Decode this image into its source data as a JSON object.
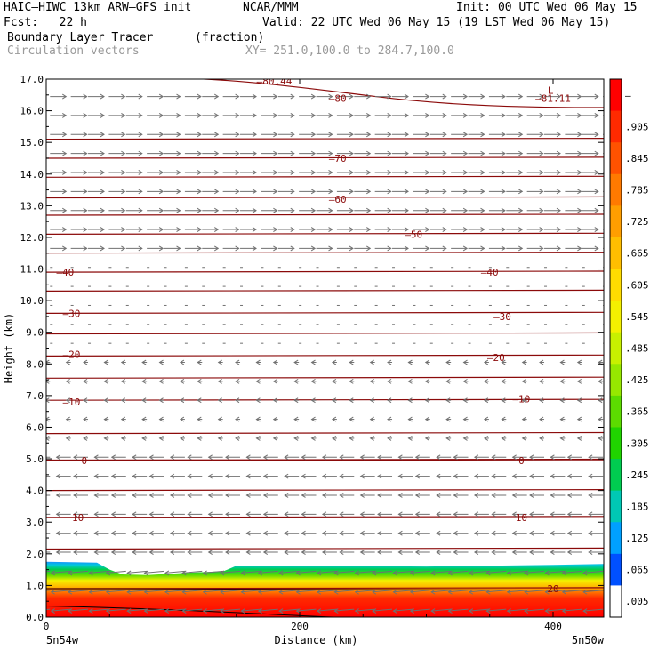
{
  "header": {
    "model": "HAIC–HIWC 13km ARW–GFS init",
    "org": "NCAR/MMM",
    "init": "Init: 00 UTC Wed 06 May 15",
    "fcst": "Fcst:   22 h",
    "valid": "Valid: 22 UTC Wed 06 May 15 (19 LST Wed 06 May 15)",
    "field": "Boundary Layer Tracer",
    "units": "(fraction)",
    "vectors": "Circulation vectors",
    "xy": "XY= 251.0,100.0 to 284.7,100.0"
  },
  "chart_data": {
    "type": "heatmap",
    "xlabel": "Distance (km)",
    "ylabel": "Height (km)",
    "xlim": [
      0,
      440
    ],
    "ylim": [
      0,
      17
    ],
    "xticks": [
      0,
      200,
      400
    ],
    "yticks": [
      "0.0",
      "1.0",
      "2.0",
      "3.0",
      "4.0",
      "5.0",
      "6.0",
      "7.0",
      "8.0",
      "9.0",
      "10.0",
      "11.0",
      "12.0",
      "13.0",
      "14.0",
      "15.0",
      "16.0",
      "17.0"
    ],
    "x_endpoints": {
      "left": "5n54w",
      "right": "5n50w"
    },
    "colorbar": {
      "labels": [
        "–",
        ".905",
        ".845",
        ".785",
        ".725",
        ".665",
        ".605",
        ".545",
        ".485",
        ".425",
        ".365",
        ".305",
        ".245",
        ".185",
        ".125",
        ".065",
        ".005"
      ],
      "colors": [
        "#ff0000",
        "#ff2a00",
        "#ff5200",
        "#ff7a00",
        "#ff9e00",
        "#ffbe00",
        "#ffdc00",
        "#f4f000",
        "#c8f000",
        "#96e800",
        "#5cdc00",
        "#20d400",
        "#00cc50",
        "#00c8b4",
        "#00a0ff",
        "#0050ff",
        "#ffffff"
      ]
    },
    "tracer_top_km": [
      [
        0,
        1.75
      ],
      [
        40,
        1.72
      ],
      [
        50,
        1.5
      ],
      [
        60,
        1.35
      ],
      [
        80,
        1.33
      ],
      [
        110,
        1.4
      ],
      [
        140,
        1.45
      ],
      [
        150,
        1.62
      ],
      [
        200,
        1.62
      ],
      [
        300,
        1.6
      ],
      [
        400,
        1.65
      ],
      [
        440,
        1.68
      ]
    ],
    "temperature_contours": [
      {
        "label": "20",
        "x": 400,
        "y": 0.9
      },
      {
        "label": "10",
        "x": 25,
        "y": 3.15
      },
      {
        "label": "10",
        "x": 375,
        "y": 3.15
      },
      {
        "label": "0",
        "x": 30,
        "y": 4.95
      },
      {
        "label": "0",
        "x": 375,
        "y": 4.95
      },
      {
        "label": "–10",
        "x": 20,
        "y": 6.8
      },
      {
        "label": "–10",
        "x": 375,
        "y": 6.9
      },
      {
        "label": "–20",
        "x": 20,
        "y": 8.3
      },
      {
        "label": "–20",
        "x": 355,
        "y": 8.2
      },
      {
        "label": "–30",
        "x": 20,
        "y": 9.6
      },
      {
        "label": "–30",
        "x": 360,
        "y": 9.5
      },
      {
        "label": "–40",
        "x": 15,
        "y": 10.9
      },
      {
        "label": "–40",
        "x": 350,
        "y": 10.9
      },
      {
        "label": "–50",
        "x": 290,
        "y": 12.1
      },
      {
        "label": "–60",
        "x": 230,
        "y": 13.2
      },
      {
        "label": "–70",
        "x": 230,
        "y": 14.5
      },
      {
        "label": "–80",
        "x": 230,
        "y": 16.4
      },
      {
        "label": "–81.11",
        "x": 400,
        "y": 16.4
      },
      {
        "label": "L",
        "x": 398,
        "y": 16.65
      },
      {
        "label": "–80.44",
        "x": 180,
        "y": 16.95
      }
    ]
  }
}
